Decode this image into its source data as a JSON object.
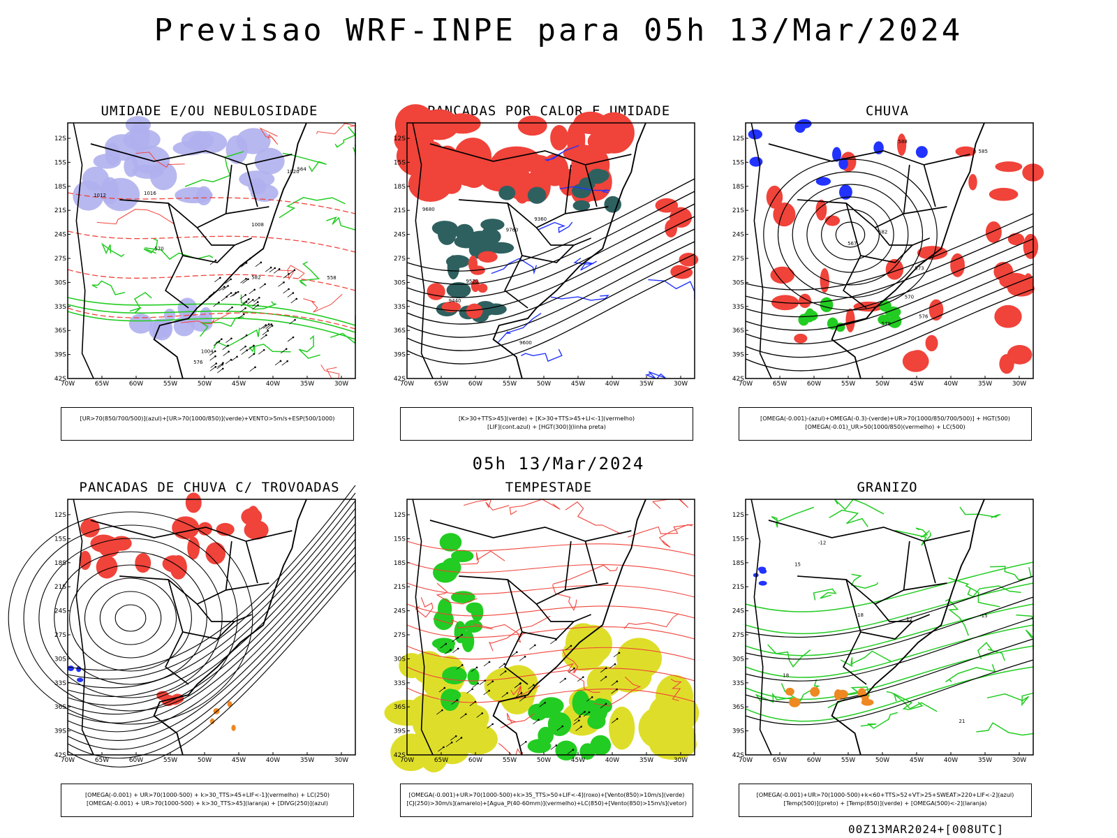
{
  "header": {
    "title": "Previsao WRF-INPE  para 05h 13/Mar/2024"
  },
  "middle": {
    "title": "05h 13/Mar/2024"
  },
  "footer": {
    "stamp": "00Z13MAR2024+[008UTC]"
  },
  "axes": {
    "lat_labels": [
      "12S",
      "15S",
      "18S",
      "21S",
      "24S",
      "27S",
      "30S",
      "33S",
      "36S",
      "39S",
      "42S"
    ],
    "lon_labels": [
      "70W",
      "65W",
      "60W",
      "55W",
      "50W",
      "45W",
      "40W",
      "35W",
      "30W"
    ]
  },
  "colors": {
    "red": "#f0433a",
    "green": "#22cc22",
    "blue": "#2233ff",
    "lavender": "#b0b0ee",
    "teal": "#2f6060",
    "yellow": "#dede2a",
    "orange": "#ee8822",
    "black": "#000000"
  },
  "panels": [
    {
      "title": "UMIDADE E/OU NEBULOSIDADE",
      "legend": [
        "[UR>70(850/700/500)](azul)+[UR>70(1000/850)](verde)+VENTO>5m/s+ESP(500/1000)"
      ]
    },
    {
      "title": "PANCADAS POR CALOR E UMIDADE",
      "legend": [
        "[K>30+TTS>45](verde) + [K>30+TTS>45+LI<-1](vermelho)",
        "[LIF](cont.azul) + [HGT(300)](linha preta)"
      ]
    },
    {
      "title": "CHUVA",
      "legend": [
        "[OMEGA(-0.001)-(azul)+OMEGA(-0.3)-(verde)+UR>70(1000/850/700/500)] + HGT(500)",
        "[OMEGA(-0.01)_UR>50(1000/850)(vermelho) + LC(500)"
      ]
    },
    {
      "title": "PANCADAS DE CHUVA C/ TROVOADAS",
      "legend": [
        "[OMEGA(-0.001) + UR>70(1000-500) + k>30_TTS>45+LIF<-1](vermelho) + LC(250)",
        "[OMEGA(-0.001) + UR>70(1000-500) + k>30_TTS>45](laranja) + [DIVG(250)](azul)"
      ]
    },
    {
      "title": "TEMPESTADE",
      "legend": [
        "[OMEGA(-0.001)+UR>70(1000-500)+k>35_TTS>50+LIF<-4](roxo)+[Vento(850)>10m/s](verde)",
        "[CJ(250)>30m/s](amarelo)+[Agua_P(40-60mm)](vermelho)+LC(850)+[Vento(850)>15m/s](vetor)"
      ]
    },
    {
      "title": "GRANIZO",
      "legend": [
        "[OMEGA(-0.001)+UR>70(1000-500)+k<60+TTS>52+VT>25+SWEAT>220+LIF<-2](azul)",
        "[Temp(500)](preto) + [Temp(850)](verde) + [OMEGA(500)<-2](laranja)"
      ]
    }
  ],
  "contour_labels": {
    "p0": [
      "1012",
      "1016",
      "1008",
      "1004",
      "1020",
      "576",
      "582",
      "570",
      "564",
      "558"
    ],
    "p1": [
      "9680",
      "9760",
      "9600",
      "9520",
      "9440",
      "9360"
    ],
    "p2": [
      "588",
      "582",
      "576",
      "570",
      "567",
      "573",
      "579",
      "585"
    ],
    "p5": [
      "-12",
      "-15",
      "-18",
      "21",
      "18",
      "15",
      "12"
    ]
  }
}
